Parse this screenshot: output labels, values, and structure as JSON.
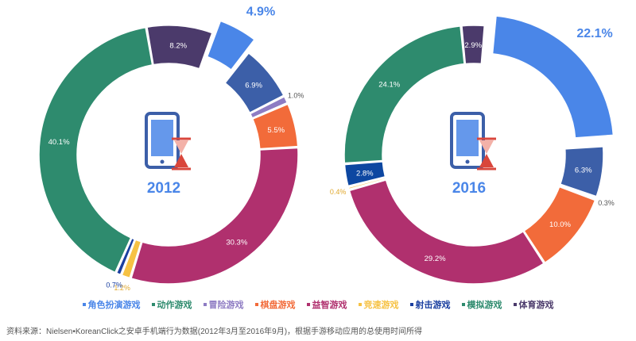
{
  "chart_data": [
    {
      "type": "pie",
      "title": "2012",
      "slices": [
        {
          "name": "角色扮演游戏",
          "value": 4.9,
          "label": "4.9%",
          "color": "#4a86e8",
          "exploded": true
        },
        {
          "name": "动作游戏",
          "value": 6.9,
          "label": "6.9%",
          "color": "#3c5fa8"
        },
        {
          "name": "冒险游戏",
          "value": 1.0,
          "label": "1.0%",
          "color": "#8e7cc3"
        },
        {
          "name": "棋盘游戏",
          "value": 5.5,
          "label": "5.5%",
          "color": "#f26b3a"
        },
        {
          "name": "益智游戏",
          "value": 30.3,
          "label": "30.3%",
          "color": "#b0306e"
        },
        {
          "name": "竞速游戏",
          "value": 1.2,
          "label": "1.2%",
          "color": "#f6c244"
        },
        {
          "name": "射击游戏",
          "value": 0.7,
          "label": "0.7%",
          "color": "#1a3fa0"
        },
        {
          "name": "模拟游戏",
          "value": 40.1,
          "label": "40.1%",
          "color": "#2e8b6e"
        },
        {
          "name": "体育游戏",
          "value": 8.2,
          "label": "8.2%",
          "color": "#4b3a6b"
        }
      ]
    },
    {
      "type": "pie",
      "title": "2016",
      "slices": [
        {
          "name": "角色扮演游戏",
          "value": 22.1,
          "label": "22.1%",
          "color": "#4a86e8",
          "exploded": true
        },
        {
          "name": "动作游戏",
          "value": 6.3,
          "label": "6.3%",
          "color": "#3c5fa8"
        },
        {
          "name": "冒险游戏",
          "value": 0.3,
          "label": "0.3%",
          "color": "#8e7cc3"
        },
        {
          "name": "棋盘游戏",
          "value": 10.0,
          "label": "10.0%",
          "color": "#f26b3a"
        },
        {
          "name": "益智游戏",
          "value": 29.2,
          "label": "29.2%",
          "color": "#b0306e"
        },
        {
          "name": "竞速游戏",
          "value": 0.4,
          "label": "0.4%",
          "color": "#f6c244"
        },
        {
          "name": "射击游戏",
          "value": 2.8,
          "label": "2.8%",
          "color": "#0d47a1"
        },
        {
          "name": "模拟游戏",
          "value": 24.1,
          "label": "24.1%",
          "color": "#2e8b6e"
        },
        {
          "name": "体育游戏",
          "value": 2.9,
          "label": "2.9%",
          "color": "#4b3a6b"
        }
      ]
    }
  ],
  "legend": [
    {
      "label": "角色扮演游戏",
      "color": "#4a86e8"
    },
    {
      "label": "动作游戏",
      "color": "#2e8b6e"
    },
    {
      "label": "冒险游戏",
      "color": "#8e7cc3"
    },
    {
      "label": "棋盘游戏",
      "color": "#f26b3a"
    },
    {
      "label": "益智游戏",
      "color": "#b0306e"
    },
    {
      "label": "竞速游戏",
      "color": "#f6c244"
    },
    {
      "label": "射击游戏",
      "color": "#1a3fa0"
    },
    {
      "label": "模拟游戏",
      "color": "#2e8b6e"
    },
    {
      "label": "体育游戏",
      "color": "#4b3a6b"
    }
  ],
  "center_icon": "phone-hourglass-icon",
  "source": "资料来源：Nielsen•KoreanClick之安卓手机端行为数据(2012年3月至2016年9月)，根据手游移动应用的总使用时间所得"
}
